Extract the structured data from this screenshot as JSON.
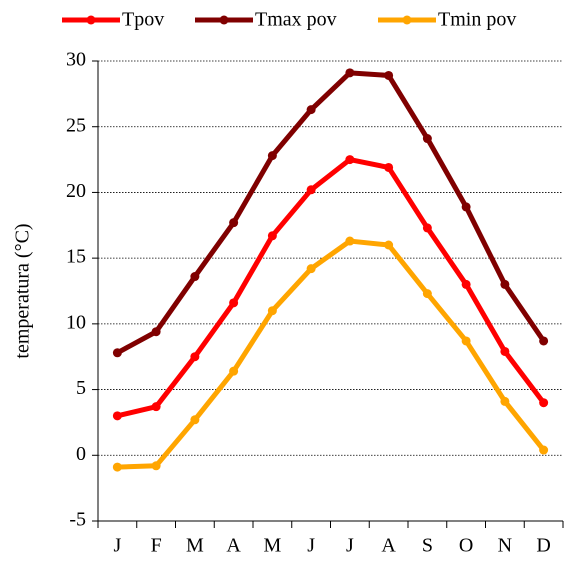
{
  "chart_data": {
    "type": "line",
    "y_label": "temperatura (°C)",
    "categories": [
      "J",
      "F",
      "M",
      "A",
      "M",
      "J",
      "J",
      "A",
      "S",
      "O",
      "N",
      "D"
    ],
    "series": [
      {
        "name": "Tpov",
        "color": "#ff0000",
        "values": [
          3.0,
          3.7,
          7.5,
          11.6,
          16.7,
          20.2,
          22.5,
          21.9,
          17.3,
          13.0,
          7.9,
          4.0
        ]
      },
      {
        "name": "Tmax pov",
        "color": "#800000",
        "values": [
          7.8,
          9.4,
          13.6,
          17.7,
          22.8,
          26.3,
          29.1,
          28.9,
          24.1,
          18.9,
          13.0,
          8.7
        ]
      },
      {
        "name": "Tmin pov",
        "color": "#ffa500",
        "values": [
          -0.9,
          -0.8,
          2.7,
          6.4,
          11.0,
          14.2,
          16.3,
          16.0,
          12.3,
          8.7,
          4.1,
          0.4
        ]
      }
    ],
    "ylim": [
      -5,
      30
    ],
    "yticks": [
      -5,
      0,
      5,
      10,
      15,
      20,
      25,
      30
    ],
    "grid": true,
    "legend": "top"
  }
}
